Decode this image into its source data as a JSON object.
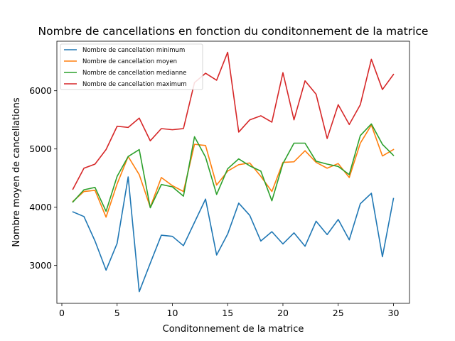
{
  "chart_data": {
    "type": "line",
    "title": "Nombre de cancellations en fonction du conditonnement de la matrice",
    "xlabel": "Conditonnement de la matrice",
    "ylabel": "Nombre moyen de cancellations",
    "xlim": [
      -0.45,
      31.45
    ],
    "ylim": [
      2350,
      6850
    ],
    "xticks": [
      0,
      5,
      10,
      15,
      20,
      25,
      30
    ],
    "yticks": [
      3000,
      4000,
      5000,
      6000
    ],
    "grid": false,
    "legend_position": "top-left",
    "x": [
      1,
      2,
      3,
      4,
      5,
      6,
      7,
      8,
      9,
      10,
      11,
      12,
      13,
      14,
      15,
      16,
      17,
      18,
      19,
      20,
      21,
      22,
      23,
      24,
      25,
      26,
      27,
      28,
      29,
      30
    ],
    "series": [
      {
        "name": "Nombre de cancellation minimum",
        "color": "#1f77b4",
        "values": [
          3920,
          3840,
          3420,
          2920,
          3380,
          4520,
          2550,
          3040,
          3520,
          3500,
          3340,
          3740,
          4140,
          3180,
          3540,
          4070,
          3860,
          3420,
          3580,
          3370,
          3560,
          3330,
          3760,
          3530,
          3790,
          3440,
          4060,
          4240,
          3150,
          4150
        ]
      },
      {
        "name": "Nombre de cancellation moyen",
        "color": "#ff7f0e",
        "values": [
          4100,
          4270,
          4290,
          3830,
          4400,
          4870,
          4560,
          4000,
          4510,
          4370,
          4270,
          5080,
          5060,
          4380,
          4620,
          4730,
          4760,
          4530,
          4270,
          4770,
          4780,
          4970,
          4770,
          4670,
          4750,
          4510,
          5100,
          5410,
          4880,
          4990
        ]
      },
      {
        "name": "Nombre de cancellation medianne",
        "color": "#2ca02c",
        "values": [
          4090,
          4300,
          4340,
          3930,
          4530,
          4870,
          4990,
          3990,
          4390,
          4350,
          4190,
          5210,
          4860,
          4220,
          4660,
          4830,
          4710,
          4620,
          4110,
          4750,
          5100,
          5100,
          4790,
          4740,
          4700,
          4560,
          5230,
          5430,
          5080,
          4890
        ]
      },
      {
        "name": "Nombre de cancellation maximum",
        "color": "#d62728",
        "values": [
          4310,
          4670,
          4740,
          4990,
          5390,
          5370,
          5530,
          5140,
          5350,
          5330,
          5350,
          6140,
          6300,
          6180,
          6660,
          5290,
          5500,
          5570,
          5460,
          6310,
          5500,
          6170,
          5940,
          5180,
          5760,
          5420,
          5760,
          6540,
          6020,
          6280
        ]
      }
    ]
  }
}
